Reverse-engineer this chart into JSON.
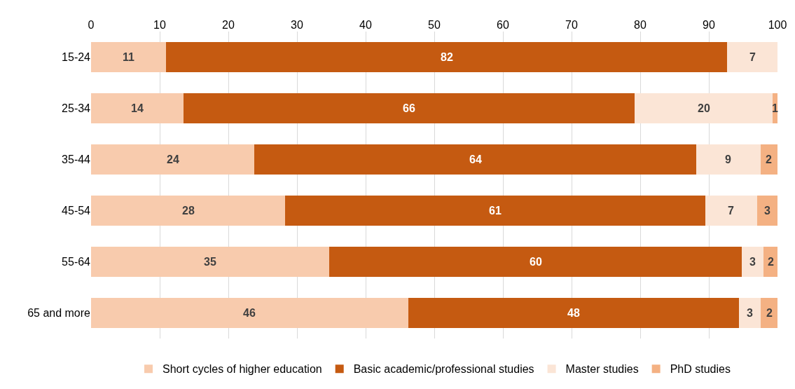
{
  "chart_data": {
    "type": "bar",
    "orientation": "horizontal",
    "stacked": true,
    "categories": [
      "15-24",
      "25-34",
      "35-44",
      "45-54",
      "55-64",
      "65 and more"
    ],
    "series": [
      {
        "name": "Short cycles of higher education",
        "color": "#f8cbad",
        "values": [
          10.9,
          13.5,
          23.8,
          28.3,
          34.7,
          46.2
        ],
        "value_labels": [
          "11",
          "14",
          "24",
          "28",
          "35",
          "46"
        ]
      },
      {
        "name": "Basic academic/professional studies",
        "color": "#c55a11",
        "values": [
          81.8,
          65.7,
          64.4,
          61.2,
          60.1,
          48.2
        ],
        "value_labels": [
          "82",
          "66",
          "64",
          "61",
          "60",
          "48"
        ]
      },
      {
        "name": "Master studies",
        "color": "#fbe5d6",
        "values": [
          7.3,
          20.1,
          9.3,
          7.5,
          3.2,
          3.2
        ],
        "value_labels": [
          "7",
          "20",
          "9",
          "7",
          "3",
          "3"
        ]
      },
      {
        "name": "PhD studies",
        "color": "#f4b183",
        "values": [
          null,
          0.7,
          2.5,
          3.0,
          2.0,
          2.4
        ],
        "value_labels": [
          null,
          "1",
          "2",
          "3",
          "2",
          "2"
        ]
      }
    ],
    "xlim": [
      0,
      100
    ],
    "xticks": [
      0,
      10,
      20,
      30,
      40,
      50,
      60,
      70,
      80,
      90,
      100
    ],
    "grid": "x",
    "legend": "bottom"
  }
}
